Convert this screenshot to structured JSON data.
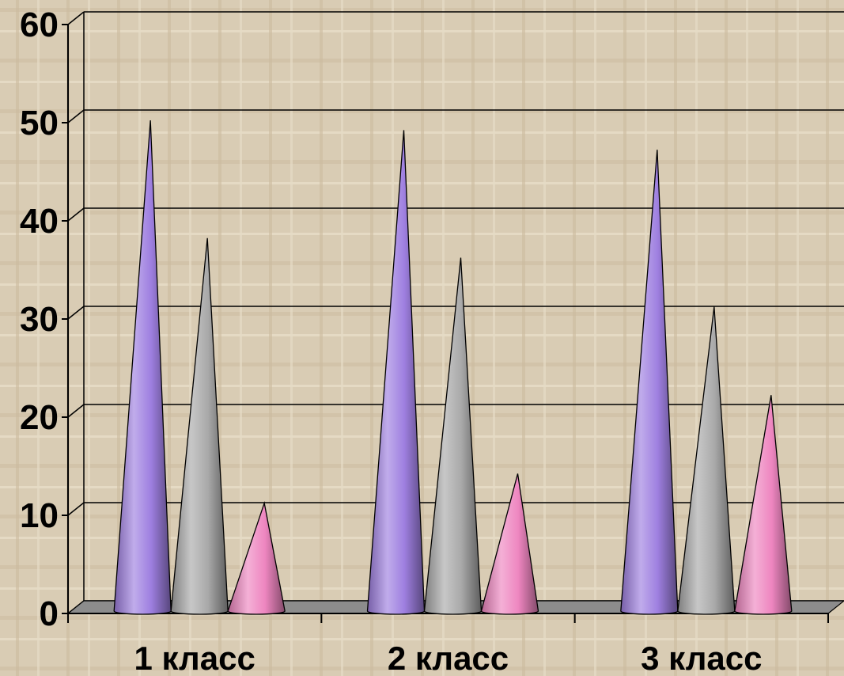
{
  "chart_data": {
    "type": "bar",
    "style": "3d-cone",
    "categories": [
      "1 класс",
      "2 класс",
      "3 класс"
    ],
    "series": [
      {
        "values": [
          50,
          49,
          47
        ],
        "color": "#9e7fe0"
      },
      {
        "values": [
          38,
          36,
          31
        ],
        "color": "#a9a9a9"
      },
      {
        "values": [
          11,
          14,
          22
        ],
        "color": "#ee86c0"
      }
    ],
    "yticks": [
      "0",
      "10",
      "20",
      "30",
      "40",
      "50",
      "60"
    ],
    "ylim": [
      0,
      60
    ],
    "grid": true,
    "legend": "none",
    "title": "",
    "xlabel": "",
    "ylabel": ""
  },
  "colors": {
    "background": "#d9ccb4",
    "floor": "#8c8c8c",
    "gridline": "#000000"
  }
}
